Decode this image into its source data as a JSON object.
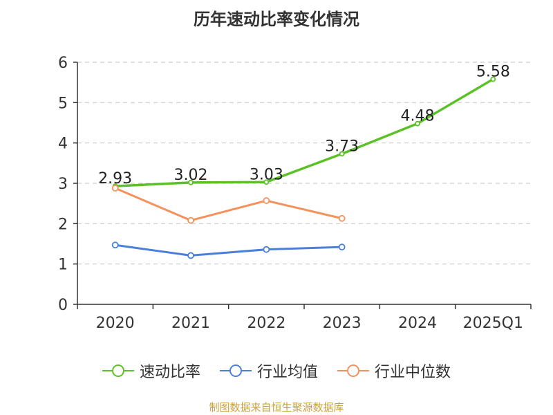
{
  "chart_data": {
    "type": "line",
    "title": "历年速动比率变化情况",
    "categories": [
      "2020",
      "2021",
      "2022",
      "2023",
      "2024",
      "2025Q1"
    ],
    "ylim": [
      0,
      6
    ],
    "yticks": [
      0,
      1,
      2,
      3,
      4,
      5,
      6
    ],
    "ytick_labels": [
      "0",
      "1",
      "2",
      "3",
      "4",
      "5",
      "6"
    ],
    "grid": true,
    "legend": "bottom",
    "series": [
      {
        "name": "速动比率",
        "color": "#5cc126",
        "values": [
          2.93,
          3.02,
          3.03,
          3.73,
          4.48,
          5.58
        ],
        "labels": [
          "2.93",
          "3.02",
          "3.03",
          "3.73",
          "4.48",
          "5.58"
        ]
      },
      {
        "name": "行业均值",
        "color": "#4a7fdb",
        "values": [
          1.47,
          1.21,
          1.36,
          1.42,
          null,
          null
        ]
      },
      {
        "name": "行业中位数",
        "color": "#f5915a",
        "values": [
          2.88,
          2.08,
          2.57,
          2.13,
          null,
          null
        ]
      }
    ]
  },
  "source": "制图数据来自恒生聚源数据库"
}
